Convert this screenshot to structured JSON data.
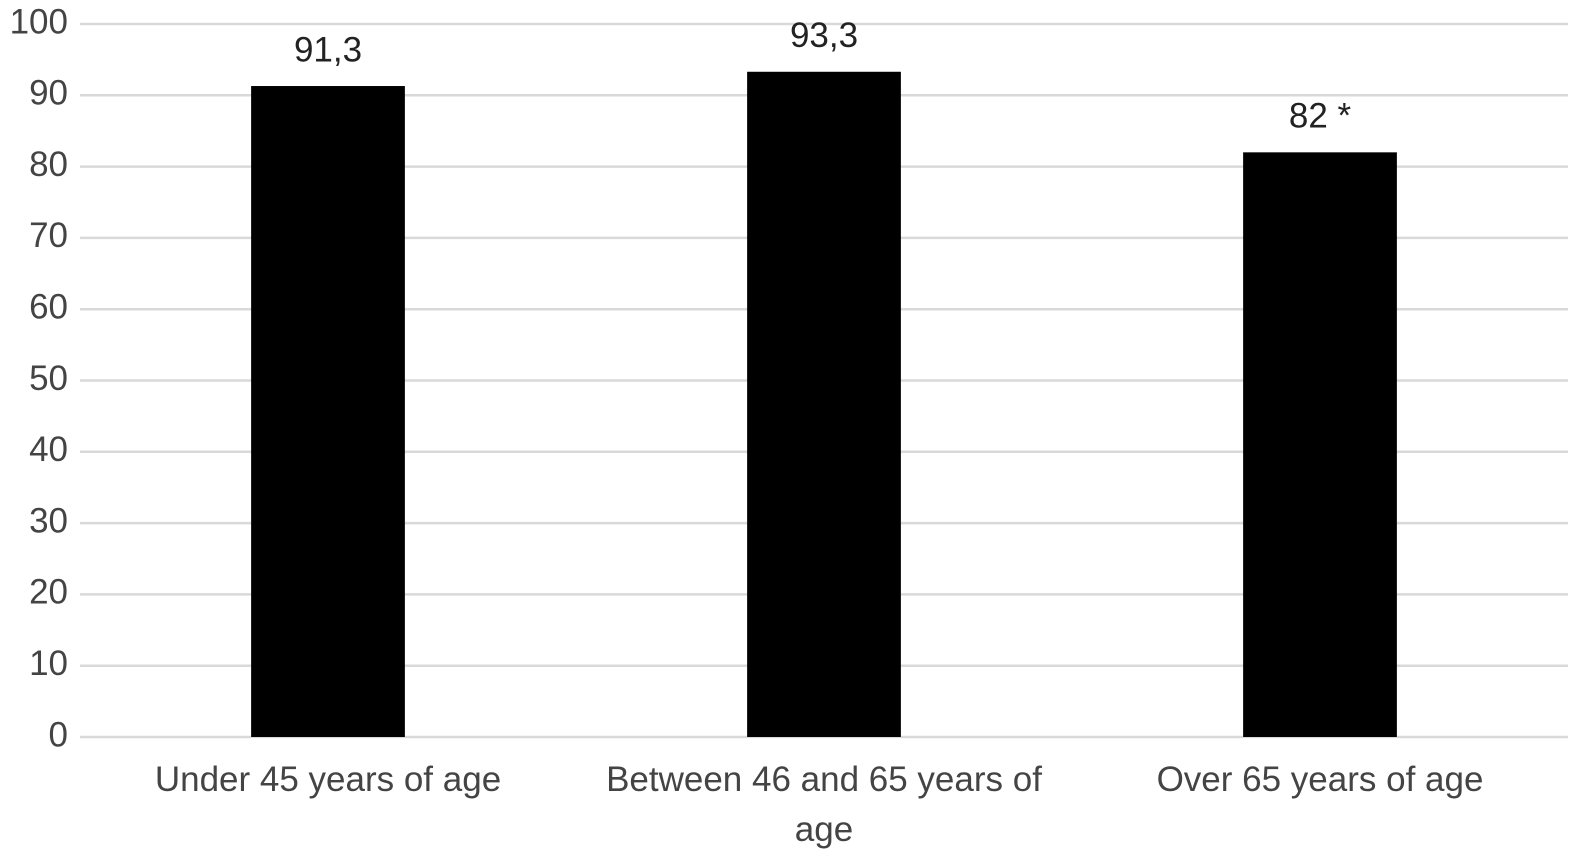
{
  "chart_data": {
    "type": "bar",
    "categories": [
      "Under 45 years of age",
      "Between 46 and 65 years of age",
      "Over 65 years of age"
    ],
    "values": [
      91.3,
      93.3,
      82
    ],
    "value_labels": [
      "91,3",
      "93,3",
      "82 *"
    ],
    "color": "#000000",
    "ylim": [
      0,
      100
    ],
    "yticks": [
      0,
      10,
      20,
      30,
      40,
      50,
      60,
      70,
      80,
      90,
      100
    ],
    "grid": true
  }
}
